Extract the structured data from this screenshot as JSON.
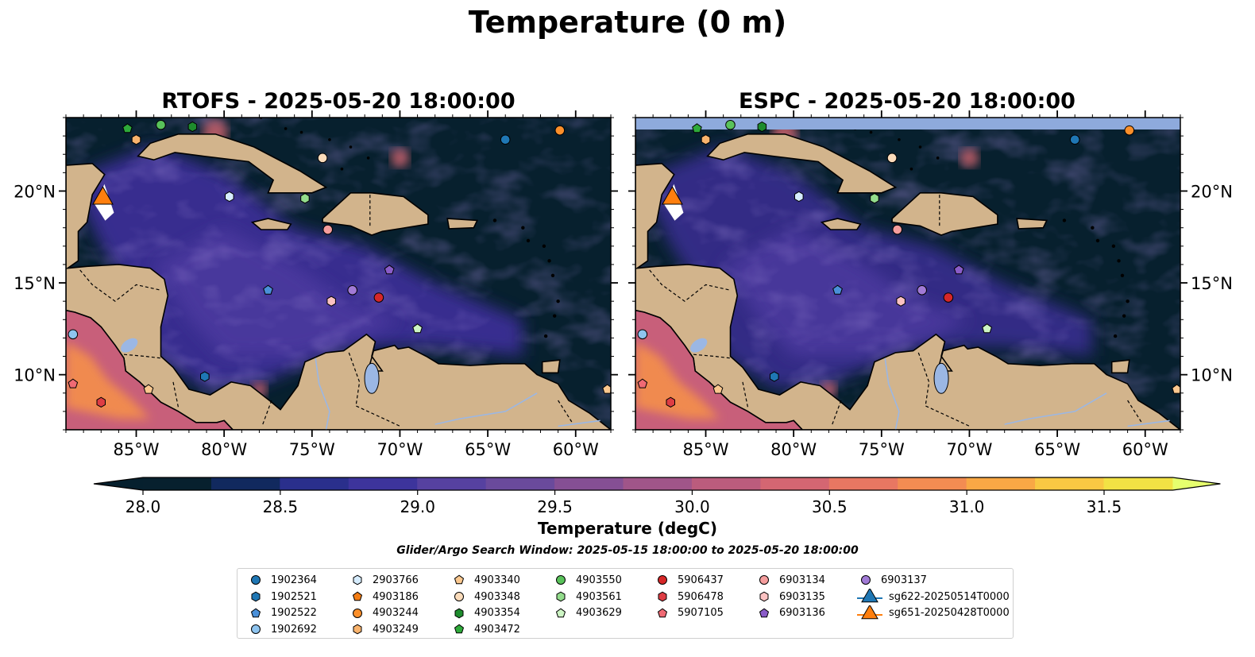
{
  "title": "Temperature (0 m)",
  "panels": [
    {
      "id": "rtofs",
      "title": "RTOFS - 2025-05-20 18:00:00"
    },
    {
      "id": "espc",
      "title": "ESPC - 2025-05-20 18:00:00"
    }
  ],
  "map": {
    "lon_range": [
      -89,
      -58
    ],
    "lat_range": [
      7,
      24
    ],
    "lon_ticks": [
      "85°W",
      "80°W",
      "75°W",
      "70°W",
      "65°W",
      "60°W"
    ],
    "lat_ticks": [
      "20°N",
      "15°N",
      "10°N"
    ],
    "land_color": "#d2b48c",
    "lake_color": "#9bb7e4"
  },
  "colorbar": {
    "label": "Temperature (degC)",
    "ticks": [
      "28.0",
      "28.5",
      "29.0",
      "29.5",
      "30.0",
      "30.5",
      "31.0",
      "31.5"
    ],
    "range": [
      28.0,
      31.5
    ],
    "colors": [
      "#07202e",
      "#11295e",
      "#2a2f8c",
      "#3d349c",
      "#5641a0",
      "#6a4a9c",
      "#854f94",
      "#a05589",
      "#bb5c7d",
      "#d46672",
      "#e87762",
      "#f38c52",
      "#f9a845",
      "#f9c843",
      "#f2e244"
    ],
    "extend_min": "#06202e",
    "extend_max": "#e6ff6e"
  },
  "search_window": "Glider/Argo Search Window: 2025-05-15 18:00:00 to 2025-05-20 18:00:00",
  "legend": [
    {
      "label": "1902364",
      "marker": "circle",
      "color": "#1f77b4"
    },
    {
      "label": "1902521",
      "marker": "hexagon",
      "color": "#1f77b4"
    },
    {
      "label": "1902522",
      "marker": "pentagon",
      "color": "#4a90d9"
    },
    {
      "label": "1902692",
      "marker": "circle",
      "color": "#8ec4ef"
    },
    {
      "label": "2903766",
      "marker": "hexagon",
      "color": "#d6ecff"
    },
    {
      "label": "4903186",
      "marker": "pentagon",
      "color": "#f47d14"
    },
    {
      "label": "4903244",
      "marker": "circle",
      "color": "#fb8f2a"
    },
    {
      "label": "4903249",
      "marker": "hexagon",
      "color": "#f9b36d"
    },
    {
      "label": "4903340",
      "marker": "pentagon",
      "color": "#fbc88f"
    },
    {
      "label": "4903348",
      "marker": "circle",
      "color": "#fbdcbb"
    },
    {
      "label": "4903354",
      "marker": "hexagon",
      "color": "#1e8c2d"
    },
    {
      "label": "4903472",
      "marker": "pentagon",
      "color": "#2eaa3a"
    },
    {
      "label": "4903550",
      "marker": "circle",
      "color": "#59c25a"
    },
    {
      "label": "4903561",
      "marker": "hexagon",
      "color": "#93dc8c"
    },
    {
      "label": "4903629",
      "marker": "pentagon",
      "color": "#cdf5c4"
    },
    {
      "label": "5906437",
      "marker": "circle",
      "color": "#d62728"
    },
    {
      "label": "5906478",
      "marker": "hexagon",
      "color": "#de3d44"
    },
    {
      "label": "5907105",
      "marker": "pentagon",
      "color": "#f06a74"
    },
    {
      "label": "6903134",
      "marker": "circle",
      "color": "#f59d9d"
    },
    {
      "label": "6903135",
      "marker": "hexagon",
      "color": "#fbc2c2"
    },
    {
      "label": "6903136",
      "marker": "pentagon",
      "color": "#8a5cc8"
    },
    {
      "label": "6903137",
      "marker": "circle",
      "color": "#a17ad6"
    },
    {
      "label": "sg622-20250514T0000",
      "marker": "triangle",
      "color": "#1f77b4"
    },
    {
      "label": "sg651-20250428T0000",
      "marker": "triangle",
      "color": "#ff7f0e"
    }
  ],
  "floats": [
    {
      "id": "1902364",
      "lon": -64.0,
      "lat": 22.8
    },
    {
      "id": "1902692",
      "lon": -88.6,
      "lat": 12.2
    },
    {
      "id": "2903766",
      "lon": -79.7,
      "lat": 19.7
    },
    {
      "id": "4903244",
      "lon": -60.9,
      "lat": 23.3
    },
    {
      "id": "4903249",
      "lon": -85.0,
      "lat": 22.8
    },
    {
      "id": "4903340",
      "lon": -58.2,
      "lat": 9.2
    },
    {
      "id": "4903340",
      "lon": -84.3,
      "lat": 9.2
    },
    {
      "id": "4903348",
      "lon": -74.4,
      "lat": 21.8
    },
    {
      "id": "4903354",
      "lon": -81.8,
      "lat": 23.5
    },
    {
      "id": "4903472",
      "lon": -85.5,
      "lat": 23.4
    },
    {
      "id": "4903550",
      "lon": -83.6,
      "lat": 23.6
    },
    {
      "id": "4903561",
      "lon": -75.4,
      "lat": 19.6
    },
    {
      "id": "4903629",
      "lon": -69.0,
      "lat": 12.5
    },
    {
      "id": "5906437",
      "lon": -71.2,
      "lat": 14.2
    },
    {
      "id": "5906478",
      "lon": -87.0,
      "lat": 8.5
    },
    {
      "id": "5907105",
      "lon": -88.6,
      "lat": 9.5
    },
    {
      "id": "6903134",
      "lon": -74.1,
      "lat": 17.9
    },
    {
      "id": "6903135",
      "lon": -73.9,
      "lat": 14.0
    },
    {
      "id": "6903136",
      "lon": -70.6,
      "lat": 15.7
    },
    {
      "id": "6903137",
      "lon": -72.7,
      "lat": 14.6
    },
    {
      "id": "1902522",
      "lon": -77.5,
      "lat": 14.6
    },
    {
      "id": "1902521",
      "lon": -81.1,
      "lat": 9.9
    }
  ],
  "gliders": [
    {
      "id": "sg651-20250428T0000",
      "lon": -86.9,
      "lat": 19.6
    }
  ]
}
